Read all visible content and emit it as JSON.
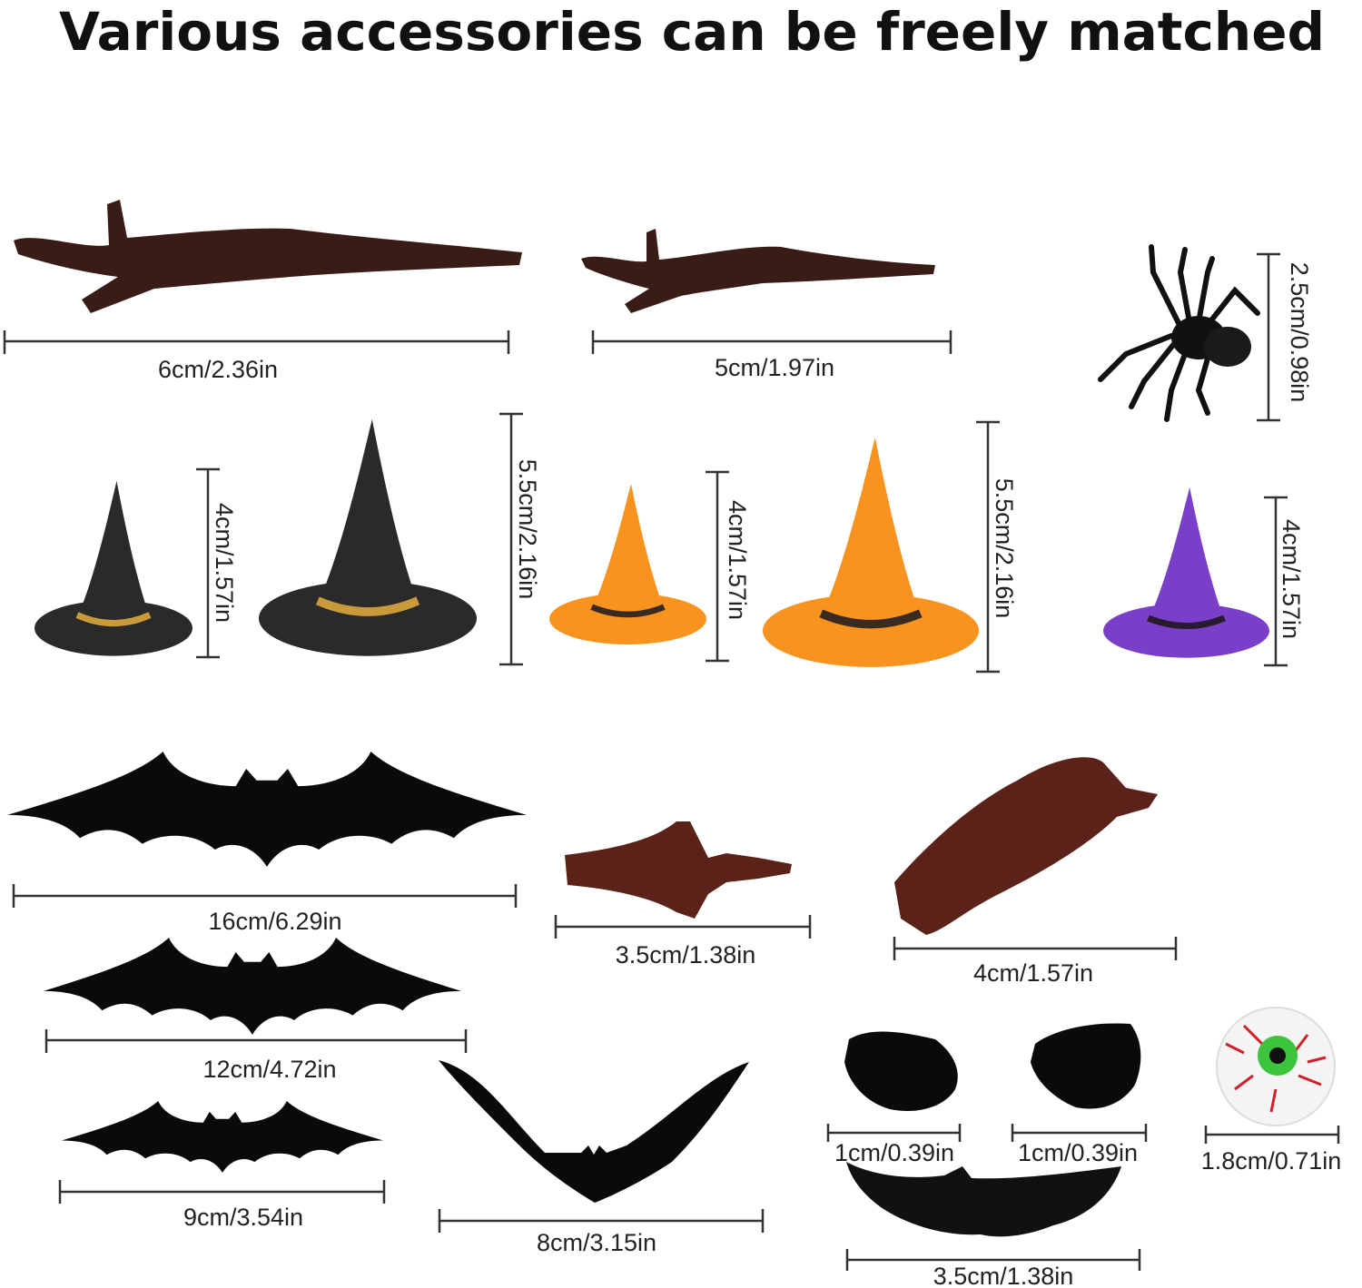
{
  "title": "Various accessories can be freely matched",
  "items": {
    "branch_large": {
      "label": "6cm/2.36in",
      "color": "#3a1c16"
    },
    "branch_small": {
      "label": "5cm/1.97in",
      "color": "#3a1c16"
    },
    "spider": {
      "label": "2.5cm/0.98in",
      "color": "#111111"
    },
    "hat_black_small": {
      "label": "4cm/1.57in",
      "color": "#2a2a2a",
      "band": "#c89a3a"
    },
    "hat_black_large": {
      "label": "5.5cm/2.16in",
      "color": "#2a2a2a",
      "band": "#c89a3a"
    },
    "hat_orange_small": {
      "label": "4cm/1.57in",
      "color": "#f7931e",
      "band": "#3a2a20"
    },
    "hat_orange_large": {
      "label": "5.5cm/2.16in",
      "color": "#f7931e",
      "band": "#3a2a20"
    },
    "hat_purple": {
      "label": "4cm/1.57in",
      "color": "#7a3fc8",
      "band": "#2a1a30"
    },
    "bat_16": {
      "label": "16cm/6.29in",
      "color": "#0a0a0a"
    },
    "bat_12": {
      "label": "12cm/4.72in",
      "color": "#0a0a0a"
    },
    "bat_9": {
      "label": "9cm/3.54in",
      "color": "#0a0a0a"
    },
    "bat_8": {
      "label": "8cm/3.15in",
      "color": "#0a0a0a"
    },
    "nose_small": {
      "label": "3.5cm/1.38in",
      "color": "#5a2218"
    },
    "nose_large": {
      "label": "4cm/1.57in",
      "color": "#5a2218"
    },
    "eye_left": {
      "label": "1cm/0.39in",
      "color": "#0a0a0a"
    },
    "eye_right": {
      "label": "1cm/0.39in",
      "color": "#0a0a0a"
    },
    "eyeball": {
      "label": "1.8cm/0.71in",
      "iris": "#3cc43c",
      "veins": "#d0202a"
    },
    "mouth": {
      "label": "3.5cm/1.38in",
      "color": "#111111"
    }
  }
}
